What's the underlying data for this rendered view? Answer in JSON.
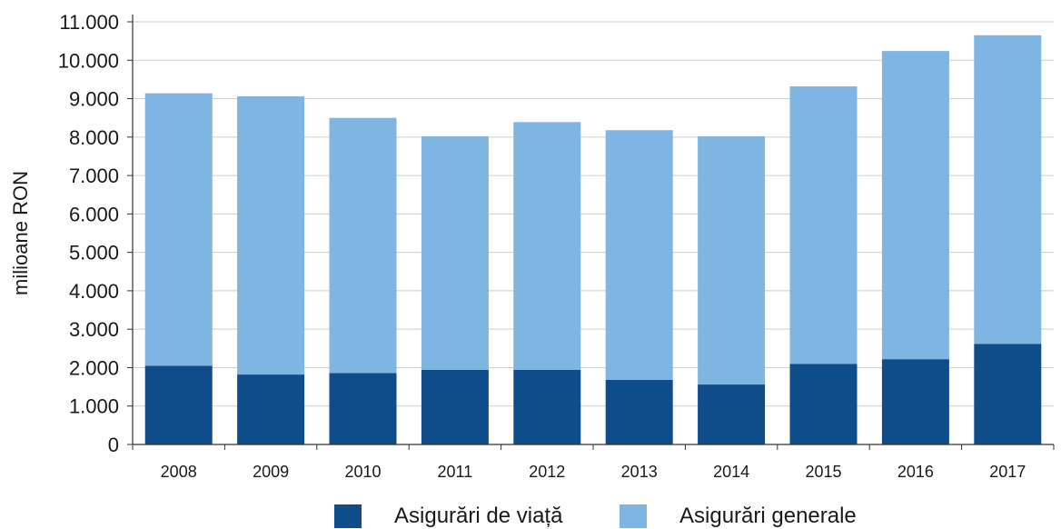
{
  "chart_data": {
    "type": "bar",
    "stacked": true,
    "categories": [
      "2008",
      "2009",
      "2010",
      "2011",
      "2012",
      "2013",
      "2014",
      "2015",
      "2016",
      "2017"
    ],
    "series": [
      {
        "name": "Asigurări de viață",
        "color": "#0f4c8a",
        "values": [
          2050,
          1820,
          1860,
          1940,
          1940,
          1680,
          1560,
          2100,
          2220,
          2620
        ]
      },
      {
        "name": "Asigurări generale",
        "color": "#7fb5e2",
        "values": [
          7090,
          7240,
          6640,
          6080,
          6450,
          6500,
          6460,
          7220,
          8020,
          8030
        ]
      }
    ],
    "title": "",
    "xlabel": "",
    "ylabel": "milioane RON",
    "ylim": [
      0,
      11000
    ],
    "yticks": [
      0,
      1000,
      2000,
      3000,
      4000,
      5000,
      6000,
      7000,
      8000,
      9000,
      10000,
      11000
    ],
    "ytick_labels": [
      "0",
      "1.000",
      "2.000",
      "3.000",
      "4.000",
      "5.000",
      "6.000",
      "7.000",
      "8.000",
      "9.000",
      "10.000",
      "11.000"
    ],
    "grid": true,
    "legend_position": "bottom",
    "colors": {
      "grid": "#cfcfcf",
      "axis": "#333333"
    }
  }
}
